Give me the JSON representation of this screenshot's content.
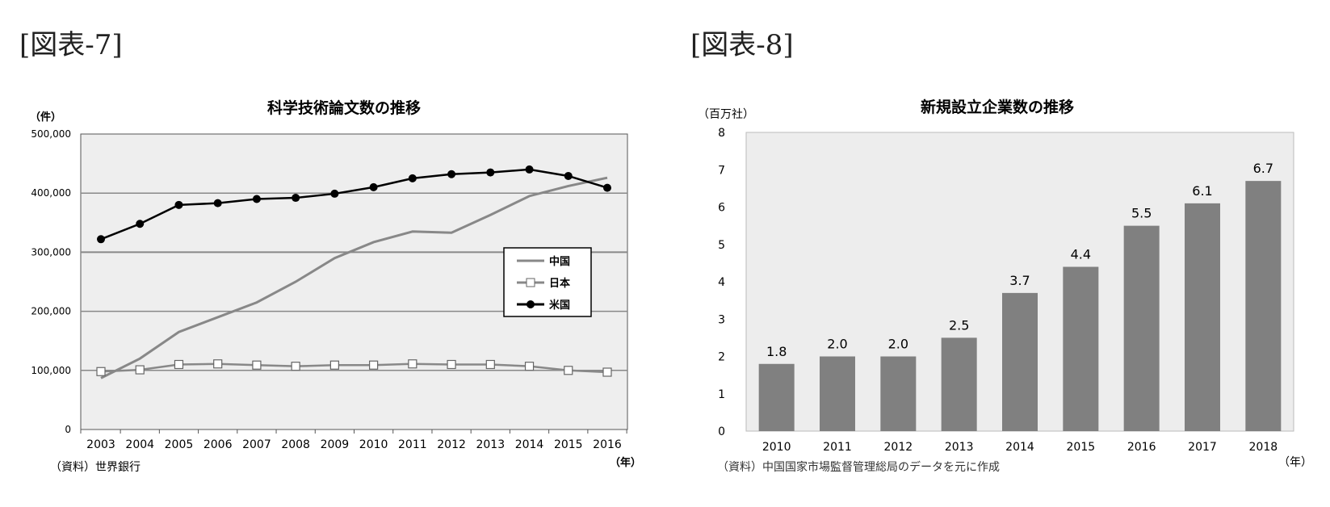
{
  "figures": [
    {
      "label": "[図表-7]"
    },
    {
      "label": "[図表-8]"
    }
  ],
  "chart_data": [
    {
      "type": "line",
      "title": "科学技術論文数の推移",
      "y_unit": "（件）",
      "x_unit": "（年）",
      "source": "（資料）世界銀行",
      "x": [
        "2003",
        "2004",
        "2005",
        "2006",
        "2007",
        "2008",
        "2009",
        "2010",
        "2011",
        "2012",
        "2013",
        "2014",
        "2015",
        "2016"
      ],
      "ylim": [
        0,
        500000
      ],
      "yticks": [
        0,
        100000,
        200000,
        300000,
        400000,
        500000
      ],
      "ytick_labels": [
        "0",
        "100,000",
        "200,000",
        "300,000",
        "400,000",
        "500,000"
      ],
      "grid": true,
      "legend_position": "right",
      "series": [
        {
          "name": "中国",
          "marker": "none",
          "color": "#888888",
          "values": [
            87000,
            120000,
            165000,
            190000,
            215000,
            250000,
            290000,
            317000,
            335000,
            333000,
            363000,
            395000,
            412000,
            426000
          ]
        },
        {
          "name": "日本",
          "marker": "square-open",
          "color": "#888888",
          "values": [
            98000,
            101000,
            110000,
            111000,
            109000,
            107000,
            109000,
            109000,
            111000,
            110000,
            110000,
            107000,
            100000,
            97000
          ]
        },
        {
          "name": "米国",
          "marker": "circle-filled",
          "color": "#000000",
          "values": [
            322000,
            348000,
            380000,
            383000,
            390000,
            392000,
            399000,
            410000,
            425000,
            432000,
            435000,
            440000,
            429000,
            409000
          ]
        }
      ]
    },
    {
      "type": "bar",
      "title": "新規設立企業数の推移",
      "y_unit": "（百万社）",
      "x_unit": "（年）",
      "source": "（資料）中国国家市場監督管理総局のデータを元に作成",
      "categories": [
        "2010",
        "2011",
        "2012",
        "2013",
        "2014",
        "2015",
        "2016",
        "2017",
        "2018"
      ],
      "values": [
        1.8,
        2.0,
        2.0,
        2.5,
        3.7,
        4.4,
        5.5,
        6.1,
        6.7
      ],
      "value_labels": [
        "1.8",
        "2.0",
        "2.0",
        "2.5",
        "3.7",
        "4.4",
        "5.5",
        "6.1",
        "6.7"
      ],
      "ylim": [
        0,
        8
      ],
      "yticks": [
        "0",
        "1",
        "2",
        "3",
        "4",
        "5",
        "6",
        "7",
        "8"
      ],
      "bar_color": "#808080"
    }
  ]
}
